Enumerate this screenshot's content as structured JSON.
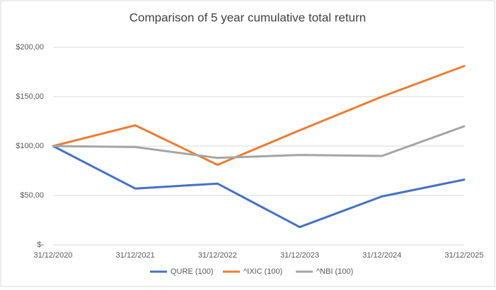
{
  "chart_data": {
    "type": "line",
    "title": "Comparison of 5 year cumulative total return",
    "categories": [
      "31/12/2020",
      "31/12/2021",
      "31/12/2022",
      "31/12/2023",
      "31/12/2024",
      "31/12/2025"
    ],
    "series": [
      {
        "name": "QURE (100)",
        "color": "#4472c4",
        "values": [
          100,
          57,
          62,
          18,
          49,
          66
        ]
      },
      {
        "name": "^IXIC (100)",
        "color": "#ed7d31",
        "values": [
          100,
          121,
          81,
          116,
          150,
          181
        ]
      },
      {
        "name": "^NBI (100)",
        "color": "#a5a5a5",
        "values": [
          100,
          99,
          88,
          91,
          90,
          120
        ]
      }
    ],
    "ylim": [
      0,
      200
    ],
    "yticks": [
      {
        "value": 0,
        "label": "$-"
      },
      {
        "value": 50,
        "label": "$50,00"
      },
      {
        "value": 100,
        "label": "$100,00"
      },
      {
        "value": 150,
        "label": "$150,00"
      },
      {
        "value": 200,
        "label": "$200,00"
      }
    ],
    "grid": true,
    "legend": "bottom"
  }
}
